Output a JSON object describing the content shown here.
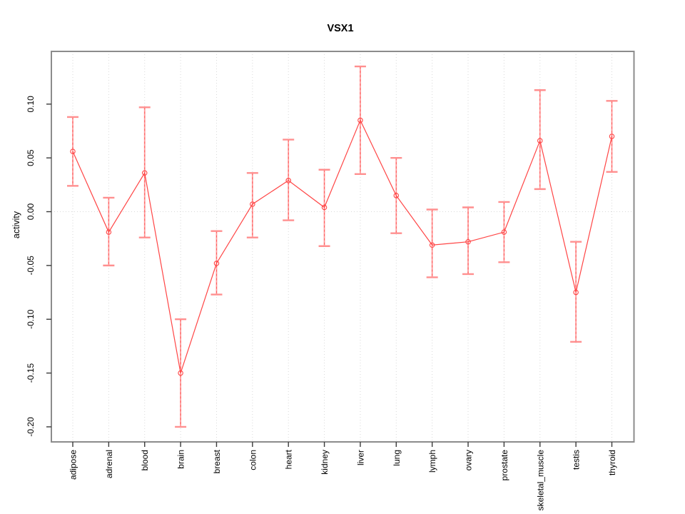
{
  "chart_data": {
    "type": "line",
    "title": "VSX1",
    "xlabel": "",
    "ylabel": "activity",
    "legend": "none",
    "point_style": "open-circle",
    "error_bars": true,
    "grid": {
      "vertical_per_category": true,
      "zero_line": true,
      "style": "dotted"
    },
    "categories": [
      "adipose",
      "adrenal",
      "blood",
      "brain",
      "breast",
      "colon",
      "heart",
      "kidney",
      "liver",
      "lung",
      "lymph",
      "ovary",
      "prostate",
      "skeletal_muscle",
      "testis",
      "thyroid"
    ],
    "series": [
      {
        "name": "VSX1 activity",
        "values": [
          0.056,
          -0.019,
          0.036,
          -0.15,
          -0.048,
          0.007,
          0.029,
          0.004,
          0.085,
          0.015,
          -0.031,
          -0.028,
          -0.019,
          0.066,
          -0.075,
          0.07
        ],
        "lower": [
          0.024,
          -0.05,
          -0.024,
          -0.2,
          -0.077,
          -0.024,
          -0.008,
          -0.032,
          0.035,
          -0.02,
          -0.061,
          -0.058,
          -0.047,
          0.021,
          -0.121,
          0.037
        ],
        "upper": [
          0.088,
          0.013,
          0.097,
          -0.1,
          -0.018,
          0.036,
          0.067,
          0.039,
          0.135,
          0.05,
          0.002,
          0.004,
          0.009,
          0.113,
          -0.028,
          0.103
        ]
      }
    ],
    "ylim": [
      -0.214,
      0.149
    ],
    "yticks": [
      0.1,
      0.05,
      0.0,
      -0.05,
      -0.1,
      -0.15,
      -0.2
    ],
    "ytick_labels": [
      "0.10",
      "0.05",
      "0.00",
      "-0.05",
      "-0.10",
      "-0.15",
      "-0.20"
    ]
  },
  "colors": {
    "series_line": "#ff4545",
    "point_stroke": "#ff4545",
    "error_bar_solid": "#ff9c9c",
    "error_bar_dash": "#ff5a5a",
    "error_cap": "#ff8f8f",
    "axis_box": "#8c8c8c",
    "tick": "#3a3a3a",
    "grid": "#d9d9d9",
    "text": "#000000",
    "background": "#ffffff"
  }
}
